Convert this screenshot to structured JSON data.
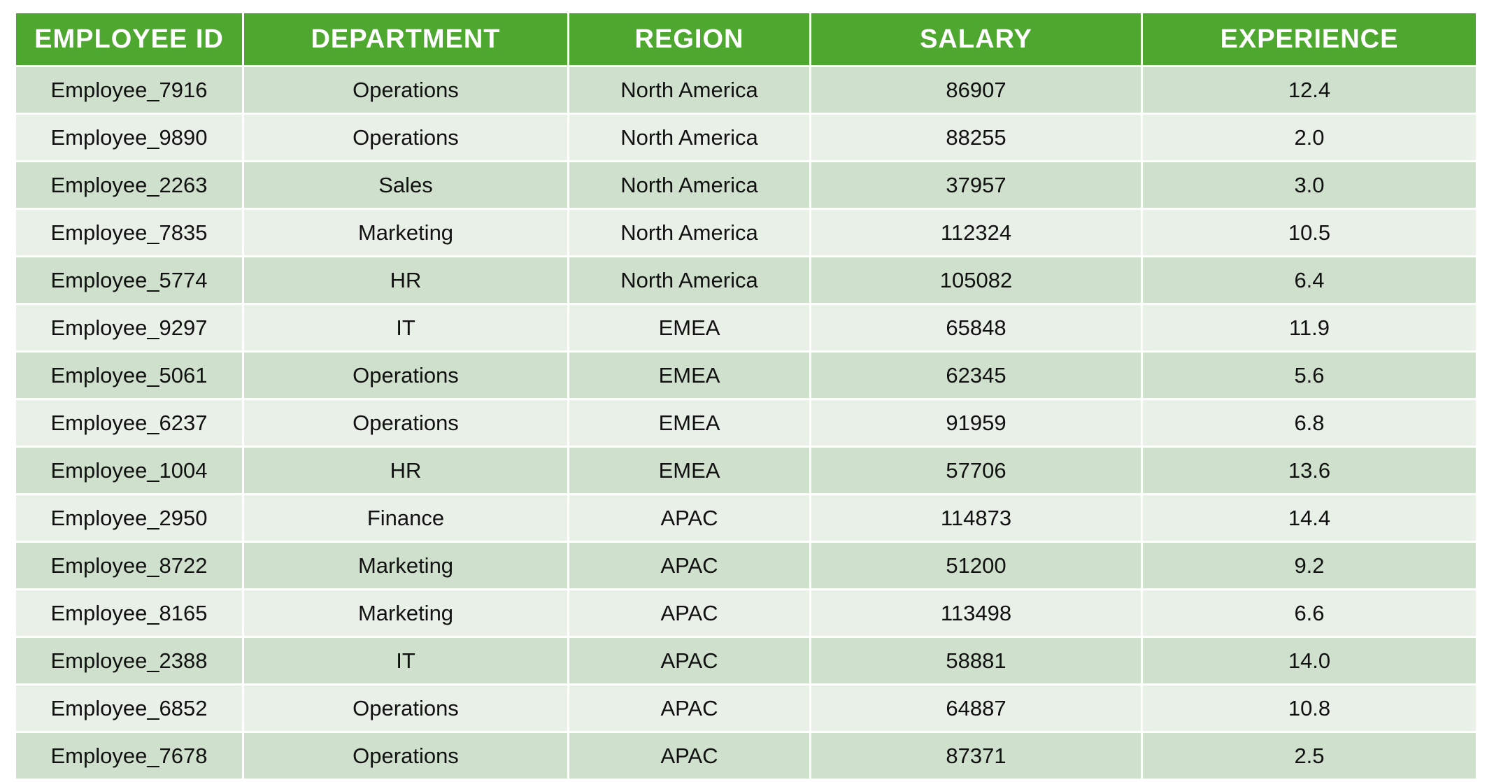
{
  "table": {
    "headers": [
      "EMPLOYEE ID",
      "DEPARTMENT",
      "REGION",
      "SALARY",
      "EXPERIENCE"
    ],
    "rows": [
      [
        "Employee_7916",
        "Operations",
        "North America",
        "86907",
        "12.4"
      ],
      [
        "Employee_9890",
        "Operations",
        "North America",
        "88255",
        "2.0"
      ],
      [
        "Employee_2263",
        "Sales",
        "North America",
        "37957",
        "3.0"
      ],
      [
        "Employee_7835",
        "Marketing",
        "North America",
        "112324",
        "10.5"
      ],
      [
        "Employee_5774",
        "HR",
        "North America",
        "105082",
        "6.4"
      ],
      [
        "Employee_9297",
        "IT",
        "EMEA",
        "65848",
        "11.9"
      ],
      [
        "Employee_5061",
        "Operations",
        "EMEA",
        "62345",
        "5.6"
      ],
      [
        "Employee_6237",
        "Operations",
        "EMEA",
        "91959",
        "6.8"
      ],
      [
        "Employee_1004",
        "HR",
        "EMEA",
        "57706",
        "13.6"
      ],
      [
        "Employee_2950",
        "Finance",
        "APAC",
        "114873",
        "14.4"
      ],
      [
        "Employee_8722",
        "Marketing",
        "APAC",
        "51200",
        "9.2"
      ],
      [
        "Employee_8165",
        "Marketing",
        "APAC",
        "113498",
        "6.6"
      ],
      [
        "Employee_2388",
        "IT",
        "APAC",
        "58881",
        "14.0"
      ],
      [
        "Employee_6852",
        "Operations",
        "APAC",
        "64887",
        "10.8"
      ],
      [
        "Employee_7678",
        "Operations",
        "APAC",
        "87371",
        "2.5"
      ]
    ]
  },
  "colors": {
    "header_bg": "#4ea72e",
    "header_text": "#ffffff",
    "row_odd_bg": "#cfe1cd",
    "row_even_bg": "#e8f0e7"
  }
}
